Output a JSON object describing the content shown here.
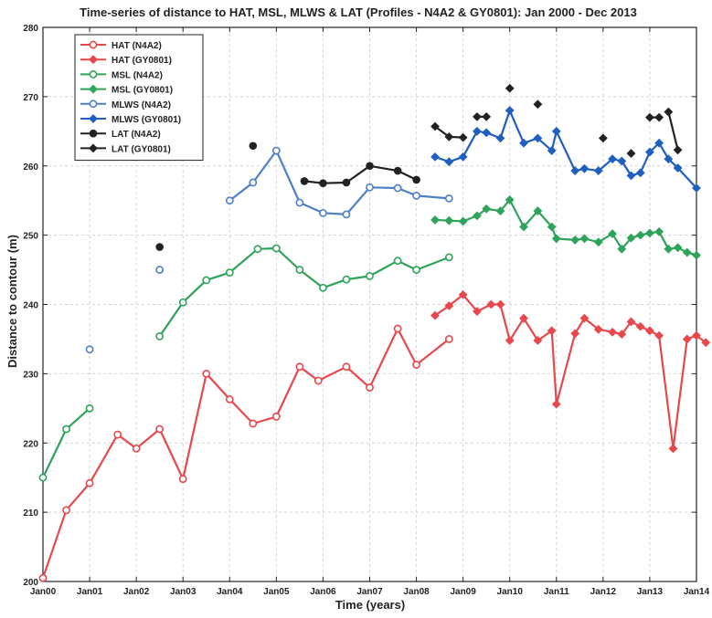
{
  "chart_data": {
    "type": "line",
    "title": "Time-series of distance to HAT, MSL, MLWS & LAT (Profiles - N4A2 & GY0801): Jan 2000 - Dec 2013",
    "xlabel": "Time (years)",
    "ylabel": "Distance to contour (m)",
    "xlim": [
      2000,
      2014
    ],
    "ylim": [
      200,
      280
    ],
    "x_ticks": [
      2000,
      2001,
      2002,
      2003,
      2004,
      2005,
      2006,
      2007,
      2008,
      2009,
      2010,
      2011,
      2012,
      2013,
      2014
    ],
    "x_tick_labels": [
      "Jan00",
      "Jan01",
      "Jan02",
      "Jan03",
      "Jan04",
      "Jan05",
      "Jan06",
      "Jan07",
      "Jan08",
      "Jan09",
      "Jan10",
      "Jan11",
      "Jan12",
      "Jan13",
      "Jan14"
    ],
    "y_ticks": [
      200,
      210,
      220,
      230,
      240,
      250,
      260,
      270,
      280
    ],
    "y_tick_labels": [
      "200",
      "210",
      "220",
      "230",
      "240",
      "250",
      "260",
      "270",
      "280"
    ],
    "grid": true,
    "legend_position": "top-left",
    "series": [
      {
        "name": "HAT (N4A2)",
        "color": "#e8474c",
        "marker": "circle-open",
        "line": "solid",
        "segments": [
          [
            [
              2000.0,
              200.5
            ],
            [
              2000.5,
              210.3
            ],
            [
              2001.0,
              214.2
            ],
            [
              2001.6,
              221.2
            ],
            [
              2002.0,
              219.2
            ],
            [
              2002.5,
              222.0
            ],
            [
              2003.0,
              214.8
            ],
            [
              2003.5,
              230.0
            ],
            [
              2004.0,
              226.3
            ],
            [
              2004.5,
              222.8
            ],
            [
              2005.0,
              223.8
            ],
            [
              2005.5,
              231.0
            ],
            [
              2005.9,
              229.0
            ],
            [
              2006.5,
              231.0
            ],
            [
              2007.0,
              228.0
            ],
            [
              2007.6,
              236.5
            ],
            [
              2008.0,
              231.3
            ],
            [
              2008.7,
              235.0
            ]
          ]
        ]
      },
      {
        "name": "HAT (GY0801)",
        "color": "#e8474c",
        "marker": "diamond-filled",
        "line": "solid",
        "segments": [
          [
            [
              2008.4,
              238.4
            ],
            [
              2008.7,
              239.8
            ],
            [
              2009.0,
              241.4
            ],
            [
              2009.3,
              239.0
            ],
            [
              2009.6,
              240.0
            ],
            [
              2009.8,
              240.0
            ],
            [
              2010.0,
              234.8
            ],
            [
              2010.3,
              238.0
            ],
            [
              2010.6,
              234.8
            ],
            [
              2010.9,
              236.2
            ],
            [
              2011.0,
              225.6
            ],
            [
              2011.4,
              235.8
            ],
            [
              2011.6,
              238.0
            ],
            [
              2011.9,
              236.4
            ],
            [
              2012.2,
              236.0
            ],
            [
              2012.4,
              235.7
            ],
            [
              2012.6,
              237.5
            ],
            [
              2012.8,
              236.8
            ],
            [
              2013.0,
              236.2
            ],
            [
              2013.2,
              235.5
            ],
            [
              2013.5,
              219.2
            ],
            [
              2013.8,
              235.0
            ],
            [
              2014.0,
              235.5
            ],
            [
              2014.2,
              234.5
            ]
          ]
        ]
      },
      {
        "name": "MSL (N4A2)",
        "color": "#2ea35a",
        "marker": "circle-open",
        "line": "solid",
        "segments": [
          [
            [
              2000.0,
              215.0
            ],
            [
              2000.5,
              222.0
            ],
            [
              2001.0,
              225.0
            ]
          ],
          [
            [
              2002.5,
              235.4
            ],
            [
              2003.0,
              240.3
            ],
            [
              2003.5,
              243.5
            ],
            [
              2004.0,
              244.6
            ],
            [
              2004.6,
              248.0
            ],
            [
              2005.0,
              248.1
            ],
            [
              2005.5,
              245.0
            ],
            [
              2006.0,
              242.4
            ],
            [
              2006.5,
              243.6
            ],
            [
              2007.0,
              244.1
            ],
            [
              2007.6,
              246.3
            ],
            [
              2008.0,
              245.0
            ],
            [
              2008.7,
              246.8
            ]
          ]
        ]
      },
      {
        "name": "MSL (GY0801)",
        "color": "#2ea35a",
        "marker": "diamond-filled",
        "line": "solid",
        "segments": [
          [
            [
              2008.4,
              252.2
            ],
            [
              2008.7,
              252.1
            ],
            [
              2009.0,
              252.0
            ],
            [
              2009.3,
              252.8
            ],
            [
              2009.5,
              253.8
            ],
            [
              2009.8,
              253.5
            ],
            [
              2010.0,
              255.1
            ],
            [
              2010.3,
              251.2
            ],
            [
              2010.6,
              253.5
            ],
            [
              2010.9,
              251.2
            ],
            [
              2011.0,
              249.5
            ],
            [
              2011.4,
              249.3
            ],
            [
              2011.6,
              249.5
            ],
            [
              2011.9,
              249.0
            ],
            [
              2012.2,
              250.2
            ],
            [
              2012.4,
              248.0
            ],
            [
              2012.6,
              249.6
            ],
            [
              2012.8,
              250.0
            ],
            [
              2013.0,
              250.3
            ],
            [
              2013.2,
              250.5
            ],
            [
              2013.4,
              248.0
            ],
            [
              2013.6,
              248.2
            ],
            [
              2013.8,
              247.5
            ],
            [
              2014.0,
              247.1
            ]
          ]
        ]
      },
      {
        "name": "MLWS (N4A2)",
        "color": "#4d7fc7",
        "marker": "circle-open",
        "line": "solid",
        "segments": [
          [
            [
              2001.0,
              233.5
            ]
          ],
          [
            [
              2002.5,
              245.0
            ]
          ],
          [
            [
              2004.0,
              255.0
            ],
            [
              2004.5,
              257.6
            ],
            [
              2005.0,
              262.2
            ],
            [
              2005.5,
              254.7
            ],
            [
              2006.0,
              253.2
            ],
            [
              2006.5,
              253.0
            ],
            [
              2007.0,
              256.9
            ],
            [
              2007.6,
              256.8
            ],
            [
              2008.0,
              255.7
            ],
            [
              2008.7,
              255.3
            ]
          ]
        ]
      },
      {
        "name": "MLWS (GY0801)",
        "color": "#1f5fbf",
        "marker": "diamond-filled",
        "line": "solid",
        "segments": [
          [
            [
              2008.4,
              261.3
            ],
            [
              2008.7,
              260.6
            ],
            [
              2009.0,
              261.3
            ],
            [
              2009.3,
              265.0
            ],
            [
              2009.5,
              264.8
            ],
            [
              2009.8,
              264.0
            ],
            [
              2010.0,
              268.0
            ],
            [
              2010.3,
              263.3
            ],
            [
              2010.6,
              264.0
            ],
            [
              2010.9,
              262.2
            ],
            [
              2011.0,
              265.0
            ],
            [
              2011.4,
              259.3
            ],
            [
              2011.6,
              259.6
            ],
            [
              2011.9,
              259.3
            ],
            [
              2012.2,
              261.0
            ],
            [
              2012.4,
              260.7
            ],
            [
              2012.6,
              258.6
            ],
            [
              2012.8,
              259.0
            ],
            [
              2013.0,
              262.0
            ],
            [
              2013.2,
              263.3
            ],
            [
              2013.4,
              261.0
            ],
            [
              2013.6,
              259.7
            ],
            [
              2014.0,
              256.8
            ]
          ]
        ]
      },
      {
        "name": "LAT (N4A2)",
        "color": "#222222",
        "marker": "circle-filled",
        "line": "solid",
        "segments": [
          [
            [
              2002.5,
              248.3
            ]
          ],
          [
            [
              2004.5,
              262.9
            ]
          ],
          [
            [
              2005.6,
              257.8
            ],
            [
              2006.0,
              257.5
            ],
            [
              2006.5,
              257.6
            ],
            [
              2007.0,
              260.0
            ],
            [
              2007.6,
              259.3
            ],
            [
              2008.0,
              258.0
            ]
          ]
        ]
      },
      {
        "name": "LAT (GY0801)",
        "color": "#222222",
        "marker": "diamond-filled",
        "line": "solid",
        "segments": [
          [
            [
              2008.4,
              265.7
            ],
            [
              2008.7,
              264.2
            ],
            [
              2009.0,
              264.1
            ]
          ],
          [
            [
              2009.3,
              267.1
            ],
            [
              2009.5,
              267.1
            ]
          ],
          [
            [
              2010.0,
              271.2
            ]
          ],
          [
            [
              2010.6,
              268.9
            ]
          ],
          [
            [
              2012.0,
              264.0
            ]
          ],
          [
            [
              2012.6,
              261.8
            ]
          ],
          [
            [
              2013.0,
              267.0
            ],
            [
              2013.2,
              267.0
            ]
          ],
          [
            [
              2013.4,
              267.8
            ],
            [
              2013.6,
              262.3
            ]
          ]
        ]
      }
    ]
  }
}
